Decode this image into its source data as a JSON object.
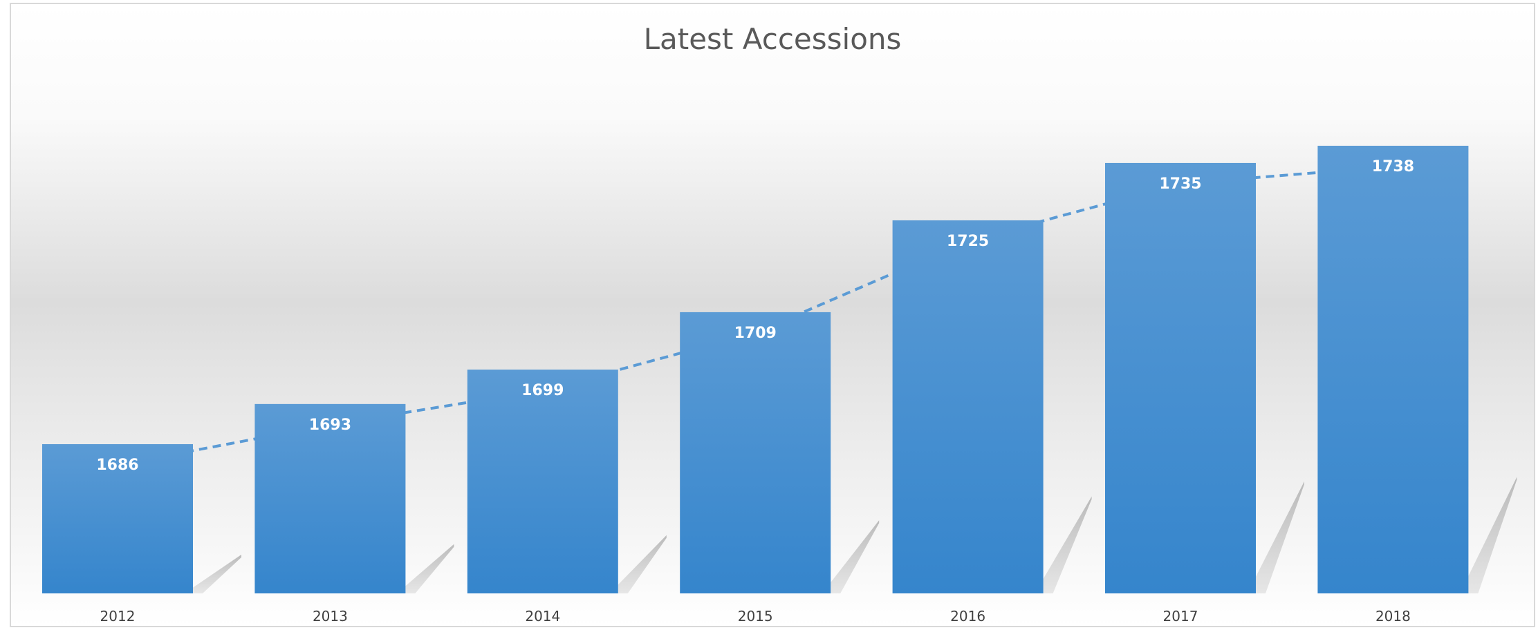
{
  "chart_data": {
    "type": "bar",
    "title": "Latest Accessions",
    "xlabel": "",
    "ylabel": "",
    "categories": [
      "2012",
      "2013",
      "2014",
      "2015",
      "2016",
      "2017",
      "2018"
    ],
    "values": [
      1686,
      1693,
      1699,
      1709,
      1725,
      1735,
      1738
    ],
    "trendline": "dashed",
    "ylim": [
      1660,
      1745
    ],
    "grid": false,
    "legend": "none",
    "data_labels": true,
    "colors": {
      "bar_top": "#5b9bd5",
      "bar_bottom": "#3585cc",
      "trendline": "#5b9bd5",
      "label": "#ffffff",
      "title": "#595959",
      "axis_text": "#404040"
    }
  }
}
